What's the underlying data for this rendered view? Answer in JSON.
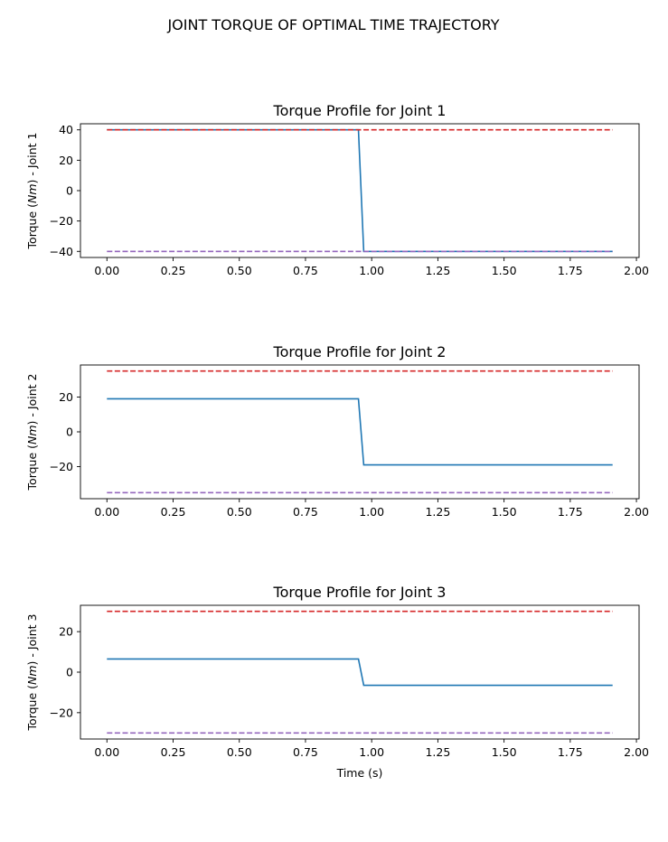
{
  "figure": {
    "suptitle": "JOINT TORQUE OF OPTIMAL TIME TRAJECTORY"
  },
  "colors": {
    "torque": "#1f77b4",
    "upper_limit": "#d62728",
    "lower_limit": "#9467bd"
  },
  "chart_data": [
    {
      "type": "line",
      "title": "Torque Profile for Joint 1",
      "ylabel_pre": "Torque (",
      "ylabel_unit": "Nm",
      "ylabel_post": ") - Joint 1",
      "xlabel": "",
      "xlim": [
        -0.1,
        2.01
      ],
      "ylim": [
        -44,
        44
      ],
      "xticks": [
        0,
        0.25,
        0.5,
        0.75,
        1.0,
        1.25,
        1.5,
        1.75,
        2.0
      ],
      "xtick_labels": [
        "0.00",
        "0.25",
        "0.50",
        "0.75",
        "1.00",
        "1.25",
        "1.50",
        "1.75",
        "2.00"
      ],
      "yticks": [
        40,
        20,
        0,
        -20,
        -40
      ],
      "ytick_labels": [
        "40",
        "20",
        "0",
        "−20",
        "−40"
      ],
      "series": [
        {
          "role": "torque",
          "style": "solid",
          "x": [
            0,
            0.95,
            0.97,
            1.91
          ],
          "y": [
            40,
            40,
            -40,
            -40
          ]
        },
        {
          "role": "upper_limit",
          "style": "dashed",
          "x": [
            0,
            1.91
          ],
          "y": [
            40,
            40
          ]
        },
        {
          "role": "lower_limit",
          "style": "dashed",
          "x": [
            0,
            1.91
          ],
          "y": [
            -40,
            -40
          ]
        }
      ]
    },
    {
      "type": "line",
      "title": "Torque Profile for Joint 2",
      "ylabel_pre": "Torque (",
      "ylabel_unit": "Nm",
      "ylabel_post": ") - Joint 2",
      "xlabel": "",
      "xlim": [
        -0.1,
        2.01
      ],
      "ylim": [
        -38.5,
        38.5
      ],
      "xticks": [
        0,
        0.25,
        0.5,
        0.75,
        1.0,
        1.25,
        1.5,
        1.75,
        2.0
      ],
      "xtick_labels": [
        "0.00",
        "0.25",
        "0.50",
        "0.75",
        "1.00",
        "1.25",
        "1.50",
        "1.75",
        "2.00"
      ],
      "yticks": [
        20,
        0,
        -20
      ],
      "ytick_labels": [
        "20",
        "0",
        "−20"
      ],
      "series": [
        {
          "role": "torque",
          "style": "solid",
          "x": [
            0,
            0.95,
            0.97,
            1.91
          ],
          "y": [
            19,
            19,
            -19,
            -19
          ]
        },
        {
          "role": "upper_limit",
          "style": "dashed",
          "x": [
            0,
            1.91
          ],
          "y": [
            35,
            35
          ]
        },
        {
          "role": "lower_limit",
          "style": "dashed",
          "x": [
            0,
            1.91
          ],
          "y": [
            -35,
            -35
          ]
        }
      ]
    },
    {
      "type": "line",
      "title": "Torque Profile for Joint 3",
      "ylabel_pre": "Torque (",
      "ylabel_unit": "Nm",
      "ylabel_post": ") - Joint 3",
      "xlabel": "Time (s)",
      "xlim": [
        -0.1,
        2.01
      ],
      "ylim": [
        -33,
        33
      ],
      "xticks": [
        0,
        0.25,
        0.5,
        0.75,
        1.0,
        1.25,
        1.5,
        1.75,
        2.0
      ],
      "xtick_labels": [
        "0.00",
        "0.25",
        "0.50",
        "0.75",
        "1.00",
        "1.25",
        "1.50",
        "1.75",
        "2.00"
      ],
      "yticks": [
        20,
        0,
        -20
      ],
      "ytick_labels": [
        "20",
        "0",
        "−20"
      ],
      "series": [
        {
          "role": "torque",
          "style": "solid",
          "x": [
            0,
            0.95,
            0.97,
            1.91
          ],
          "y": [
            6.5,
            6.5,
            -6.5,
            -6.5
          ]
        },
        {
          "role": "upper_limit",
          "style": "dashed",
          "x": [
            0,
            1.91
          ],
          "y": [
            30,
            30
          ]
        },
        {
          "role": "lower_limit",
          "style": "dashed",
          "x": [
            0,
            1.91
          ],
          "y": [
            -30,
            -30
          ]
        }
      ]
    }
  ]
}
